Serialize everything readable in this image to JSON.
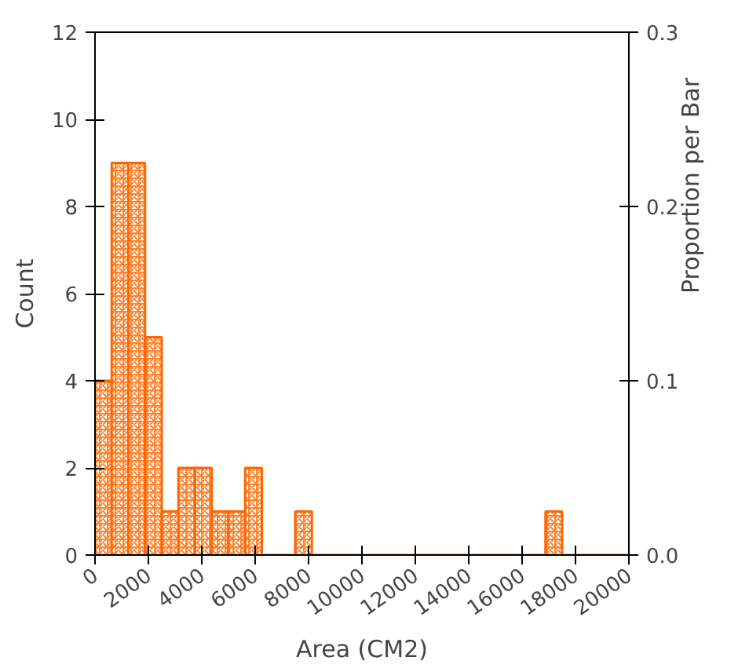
{
  "chart_data": {
    "type": "histogram",
    "xlabel": "Area (CM2)",
    "ylabel": "Count",
    "y2label": "Proportion per Bar",
    "bins": [
      0,
      625,
      1250,
      1875,
      2500,
      3125,
      3750,
      4375,
      5000,
      5625,
      6250,
      6875,
      7500,
      8125,
      8750,
      9375,
      10000,
      10625,
      11250,
      11875,
      12500,
      13125,
      13750,
      14375,
      15000,
      15625,
      16250,
      16875,
      17500,
      18125,
      18750,
      19375,
      20000
    ],
    "values": [
      4,
      9,
      9,
      5,
      1,
      2,
      2,
      1,
      1,
      2,
      0,
      0,
      1,
      0,
      0,
      0,
      0,
      0,
      0,
      0,
      0,
      0,
      0,
      0,
      0,
      0,
      0,
      1,
      0,
      0,
      0,
      0
    ],
    "color": "#ff6600",
    "xlim": [
      0,
      20000
    ],
    "xticks": [
      0,
      2000,
      4000,
      6000,
      8000,
      10000,
      12000,
      14000,
      16000,
      18000,
      20000
    ],
    "ylim": [
      0,
      12
    ],
    "yticks": [
      0,
      2,
      4,
      6,
      8,
      10,
      12
    ],
    "y2lim": [
      0,
      0.3
    ],
    "y2ticks": [
      {
        "value": 0,
        "label": "0.0"
      },
      {
        "value": 0.1,
        "label": "0.1"
      },
      {
        "value": 0.2,
        "label": "0.2"
      },
      {
        "value": 0.3,
        "label": "0.3"
      }
    ],
    "grid": false
  }
}
